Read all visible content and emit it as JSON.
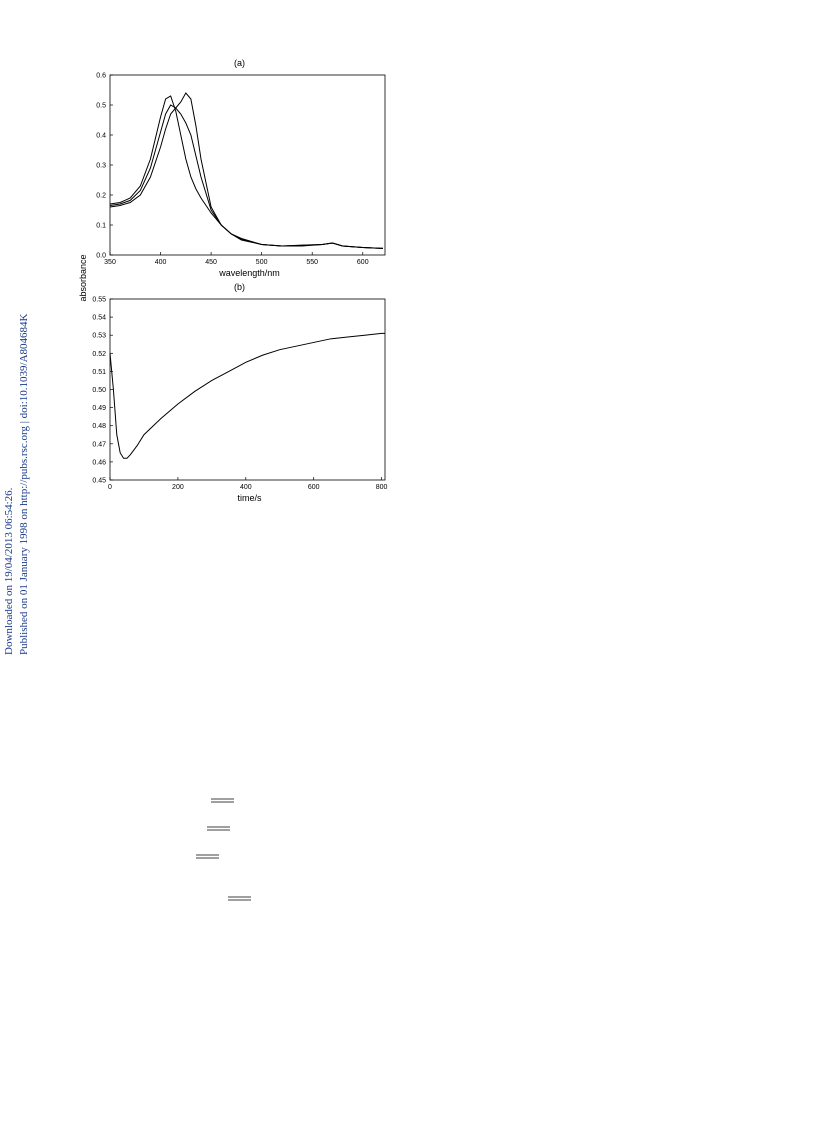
{
  "side_notes": [
    "Downloaded on 19/04/2013 06:54:26.",
    "Published on 01 January 1998 on http://pubs.rsc.org | doi:10.1039/A804684K"
  ],
  "chart_data": [
    {
      "type": "line",
      "title": "(a)",
      "x_label": "wavelength/nm",
      "y_label": "absorbance",
      "x": [
        350,
        360,
        370,
        380,
        390,
        400,
        405,
        410,
        415,
        420,
        425,
        430,
        435,
        440,
        450,
        460,
        470,
        480,
        500,
        520,
        540,
        560,
        570,
        580,
        600,
        620
      ],
      "series": [
        {
          "color": "#000000",
          "values": [
            0.17,
            0.175,
            0.19,
            0.23,
            0.32,
            0.46,
            0.52,
            0.53,
            0.48,
            0.4,
            0.32,
            0.26,
            0.22,
            0.19,
            0.14,
            0.1,
            0.07,
            0.055,
            0.035,
            0.03,
            0.033,
            0.035,
            0.04,
            0.03,
            0.025,
            0.022
          ]
        },
        {
          "color": "#000000",
          "values": [
            0.165,
            0.17,
            0.182,
            0.215,
            0.29,
            0.41,
            0.47,
            0.5,
            0.49,
            0.47,
            0.44,
            0.4,
            0.33,
            0.26,
            0.15,
            0.1,
            0.07,
            0.053,
            0.035,
            0.03,
            0.032,
            0.035,
            0.04,
            0.03,
            0.025,
            0.022
          ]
        },
        {
          "color": "#000000",
          "values": [
            0.16,
            0.165,
            0.175,
            0.2,
            0.26,
            0.36,
            0.42,
            0.47,
            0.49,
            0.51,
            0.54,
            0.52,
            0.43,
            0.32,
            0.16,
            0.1,
            0.07,
            0.05,
            0.035,
            0.03,
            0.03,
            0.035,
            0.04,
            0.03,
            0.025,
            0.022
          ]
        }
      ],
      "xlim": [
        350,
        622
      ],
      "xticks": [
        350,
        400,
        450,
        500,
        550,
        600
      ],
      "ylim": [
        0,
        0.6
      ],
      "yticks": [
        {
          "value": 0,
          "label": "0.0"
        },
        0.1,
        0.2,
        0.3,
        0.4,
        0.5,
        0.6
      ]
    },
    {
      "type": "line",
      "title": "(b)",
      "x_label": "time/s",
      "x": [
        0,
        10,
        20,
        30,
        40,
        50,
        60,
        80,
        100,
        150,
        200,
        250,
        300,
        350,
        400,
        450,
        500,
        550,
        600,
        650,
        700,
        750,
        800,
        810
      ],
      "series": [
        {
          "color": "#000000",
          "values": [
            0.52,
            0.5,
            0.475,
            0.465,
            0.462,
            0.462,
            0.464,
            0.469,
            0.475,
            0.484,
            0.492,
            0.499,
            0.505,
            0.51,
            0.515,
            0.519,
            0.522,
            0.524,
            0.526,
            0.528,
            0.529,
            0.53,
            0.531,
            0.531
          ]
        }
      ],
      "xlim": [
        0,
        810
      ],
      "xticks": [
        0,
        200,
        400,
        600,
        800
      ],
      "ylim": [
        0.45,
        0.55
      ],
      "yticks": [
        0.45,
        0.46,
        0.47,
        0.48,
        0.49,
        {
          "value": 0.5,
          "label": "0.50"
        },
        0.51,
        0.52,
        0.53,
        0.54,
        0.55
      ]
    }
  ]
}
